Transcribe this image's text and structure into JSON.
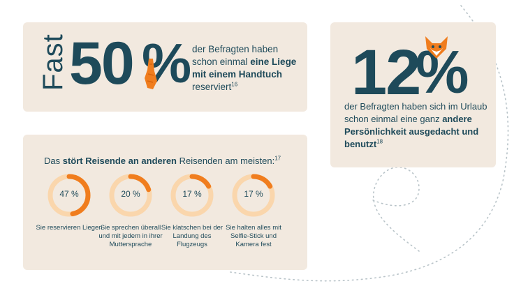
{
  "card1": {
    "fast": "Fast",
    "number": "50",
    "percent": "%",
    "text_pre": "der Befragten haben schon einmal ",
    "text_bold": "eine Liege mit einem Handtuch",
    "text_post": " reserviert",
    "footnote": "16"
  },
  "card2": {
    "number": "12",
    "percent": "%",
    "text_pre": "der Befragten haben sich im Urlaub schon einmal eine ganz ",
    "text_bold": "andere Persönlichkeit ausgedacht und benutzt",
    "footnote": "18"
  },
  "card3": {
    "title_pre": "Das ",
    "title_bold": "stört Reisende an anderen",
    "title_post": " Reisenden am meisten:",
    "footnote": "17",
    "items": [
      {
        "value": "47 %",
        "percent": 47,
        "label": "Sie reservieren Liegen"
      },
      {
        "value": "20 %",
        "percent": 20,
        "label": "Sie sprechen überall und mit jedem in ihrer Muttersprache"
      },
      {
        "value": "17 %",
        "percent": 17,
        "label": "Sie klatschen bei der Landung des Flugzeugs"
      },
      {
        "value": "17 %",
        "percent": 17,
        "label": "Sie halten alles mit Selfie-Stick und Kamera fest"
      }
    ]
  },
  "colors": {
    "navy": "#1e4a5a",
    "orange": "#f07d1e",
    "ring_track": "#fad6ac",
    "card_bg": "#f2e9df"
  },
  "icons": {
    "towel": "towel-icon",
    "fox": "fox-mask-icon"
  }
}
